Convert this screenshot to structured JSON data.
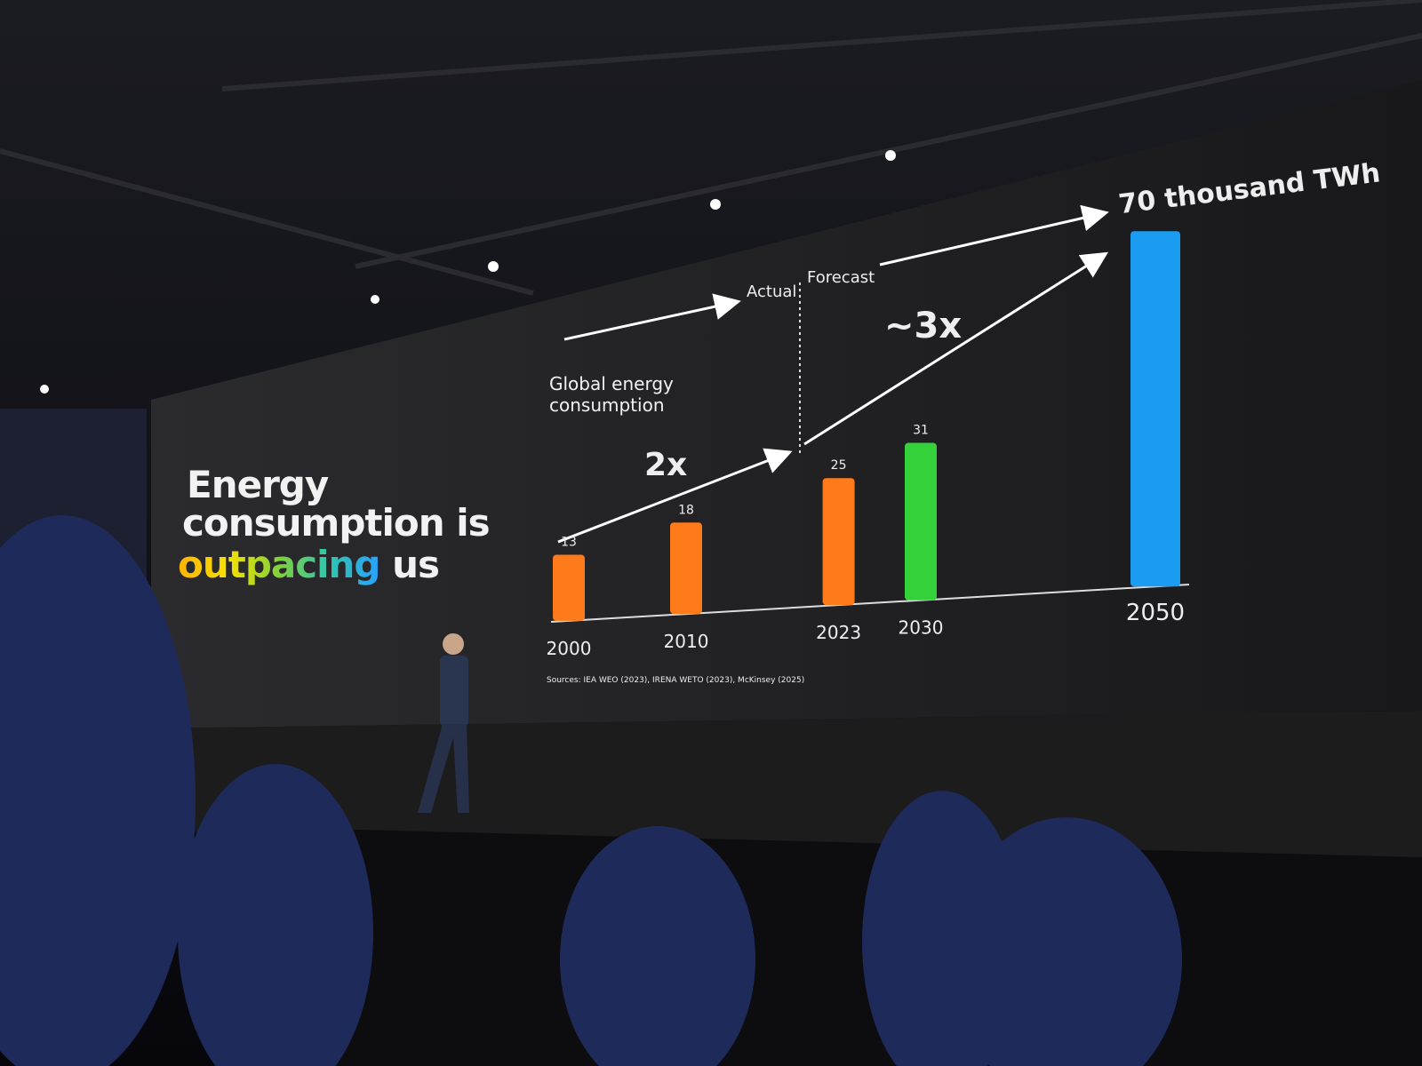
{
  "chart_data": {
    "type": "bar",
    "title": [
      "Energy",
      "consumption is",
      "outpacing",
      "us"
    ],
    "annotations": {
      "series_label": "Global energy consumption",
      "actual": "Actual",
      "forecast": "Forecast",
      "growth_actual": "2x",
      "growth_forecast": "~3x"
    },
    "x": [
      2000,
      2010,
      2023,
      2030,
      2050
    ],
    "values": [
      13,
      18,
      25,
      31,
      70
    ],
    "value_labels": [
      "13",
      "18",
      "25",
      "31",
      "70 thousand TWh"
    ],
    "colors": [
      "#ff7a1a",
      "#ff7a1a",
      "#ff7a1a",
      "#35d13a",
      "#1a9cf0"
    ],
    "source": "Sources: IEA WEO (2023), IRENA WETO (2023), McKinsey (2025)"
  }
}
